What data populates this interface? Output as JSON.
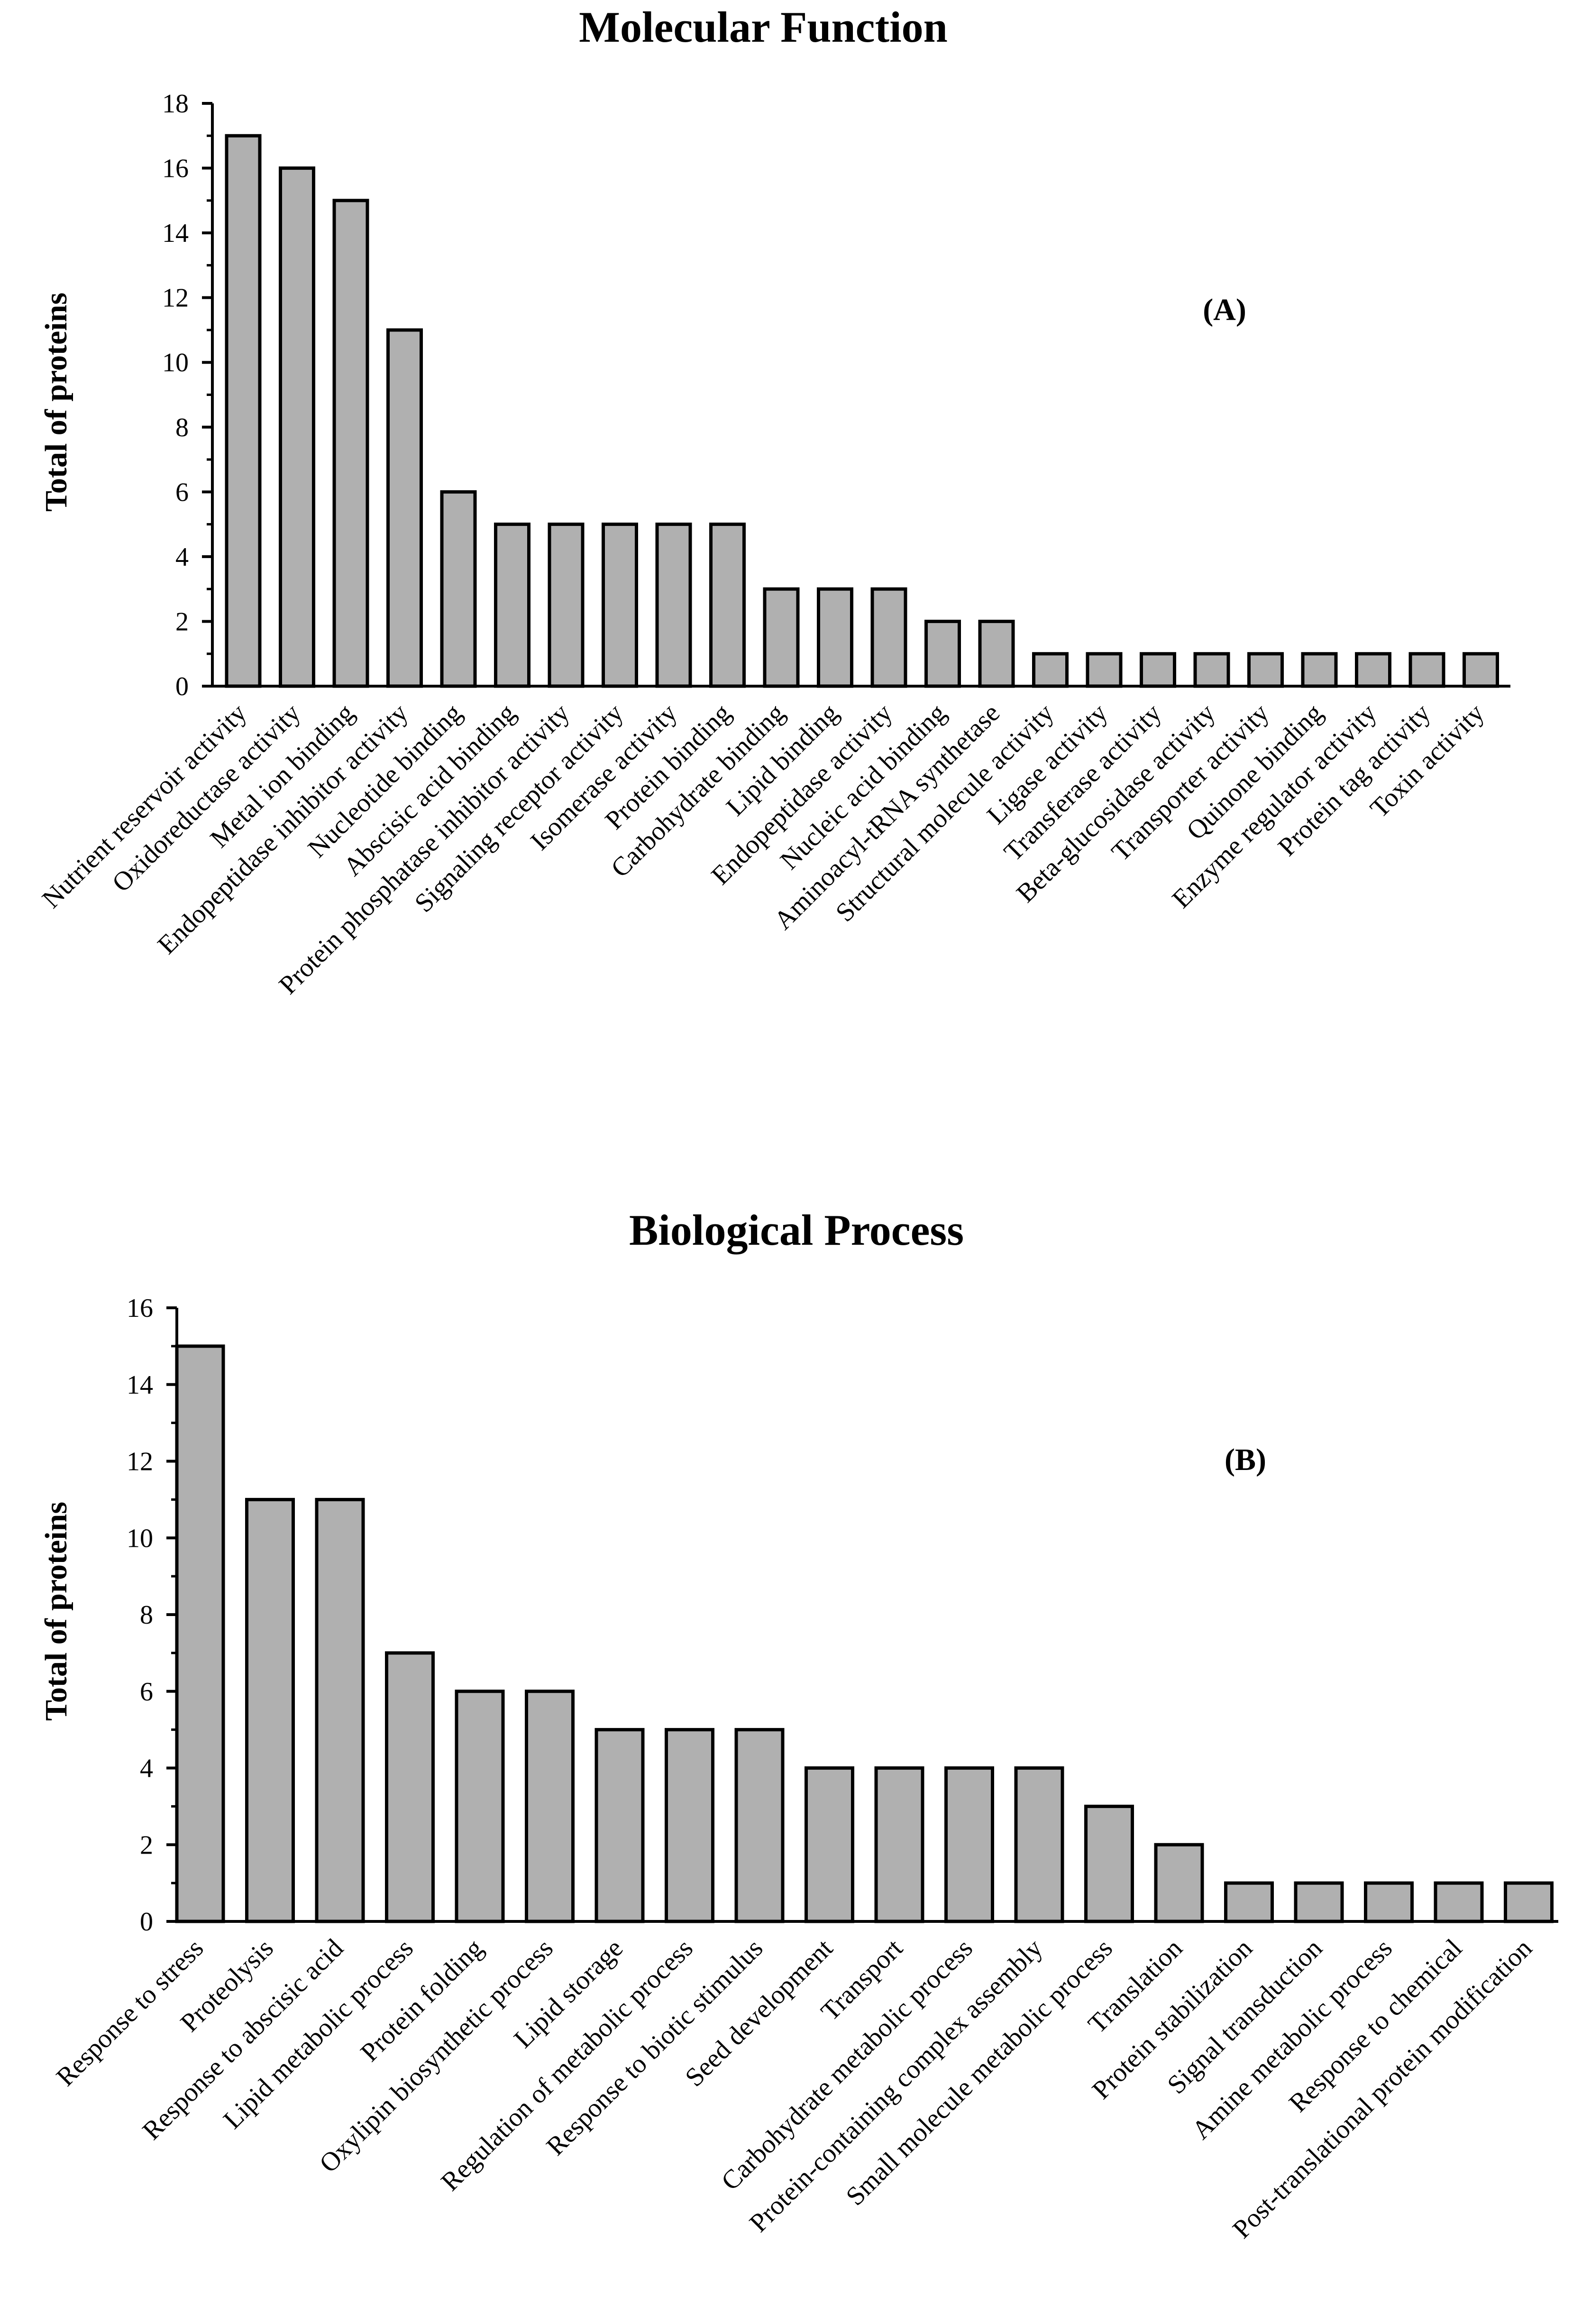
{
  "chart_data": [
    {
      "type": "bar",
      "title": "Molecular Function",
      "panel_label": "(A)",
      "ylabel": "Total of proteins",
      "xlabel": "",
      "ylim": [
        0,
        18
      ],
      "ytick_step": 2,
      "ytick_labels": [
        "0",
        "2",
        "4",
        "6",
        "8",
        "10",
        "12",
        "14",
        "16",
        "18"
      ],
      "categories": [
        "Nutrient reservoir activity",
        "Oxidoreductase activity",
        "Metal ion binding",
        "Endopeptidase inhibitor activity",
        "Nucleotide binding",
        "Abscisic acid binding",
        "Protein phosphatase inhibitor activity",
        "Signaling receptor activity",
        "Isomerase activity",
        "Protein binding",
        "Carbohydrate binding",
        "Lipid binding",
        "Endopeptidase activity",
        "Nucleic acid binding",
        "Aminoacyl-tRNA synthetase",
        "Structural molecule activity",
        "Ligase activity",
        "Transferase activity",
        "Beta-glucosidase activity",
        "Transporter activity",
        "Quinone binding",
        "Enzyme regulator activity",
        "Protein tag activity",
        "Toxin activity"
      ],
      "values": [
        17,
        16,
        15,
        11,
        6,
        5,
        5,
        5,
        5,
        5,
        3,
        3,
        3,
        2,
        2,
        1,
        1,
        1,
        1,
        1,
        1,
        1,
        1,
        1
      ],
      "bar_color": "#b0b0b0"
    },
    {
      "type": "bar",
      "title": "Biological Process",
      "panel_label": "(B)",
      "ylabel": "Total of proteins",
      "xlabel": "",
      "ylim": [
        0,
        16
      ],
      "ytick_step": 2,
      "ytick_labels": [
        "0",
        "2",
        "4",
        "6",
        "8",
        "10",
        "12",
        "14",
        "16"
      ],
      "categories": [
        "Response to stress",
        "Proteolysis",
        "Response to abscisic acid",
        "Lipid metabolic process",
        "Protein folding",
        "Oxylipin biosynthetic process",
        "Lipid storage",
        "Regulation of metabolic process",
        "Response to biotic stimulus",
        "Seed development",
        "Transport",
        "Carbohydrate metabolic process",
        "Protein-containing complex assembly",
        "Small molecule metabolic process",
        "Translation",
        "Protein stabilization",
        "Signal transduction",
        "Amine metabolic process",
        "Response to chemical",
        "Post-translational protein modification"
      ],
      "values": [
        15,
        11,
        11,
        7,
        6,
        6,
        5,
        5,
        5,
        4,
        4,
        4,
        4,
        3,
        2,
        1,
        1,
        1,
        1,
        1
      ],
      "bar_color": "#b0b0b0"
    }
  ]
}
